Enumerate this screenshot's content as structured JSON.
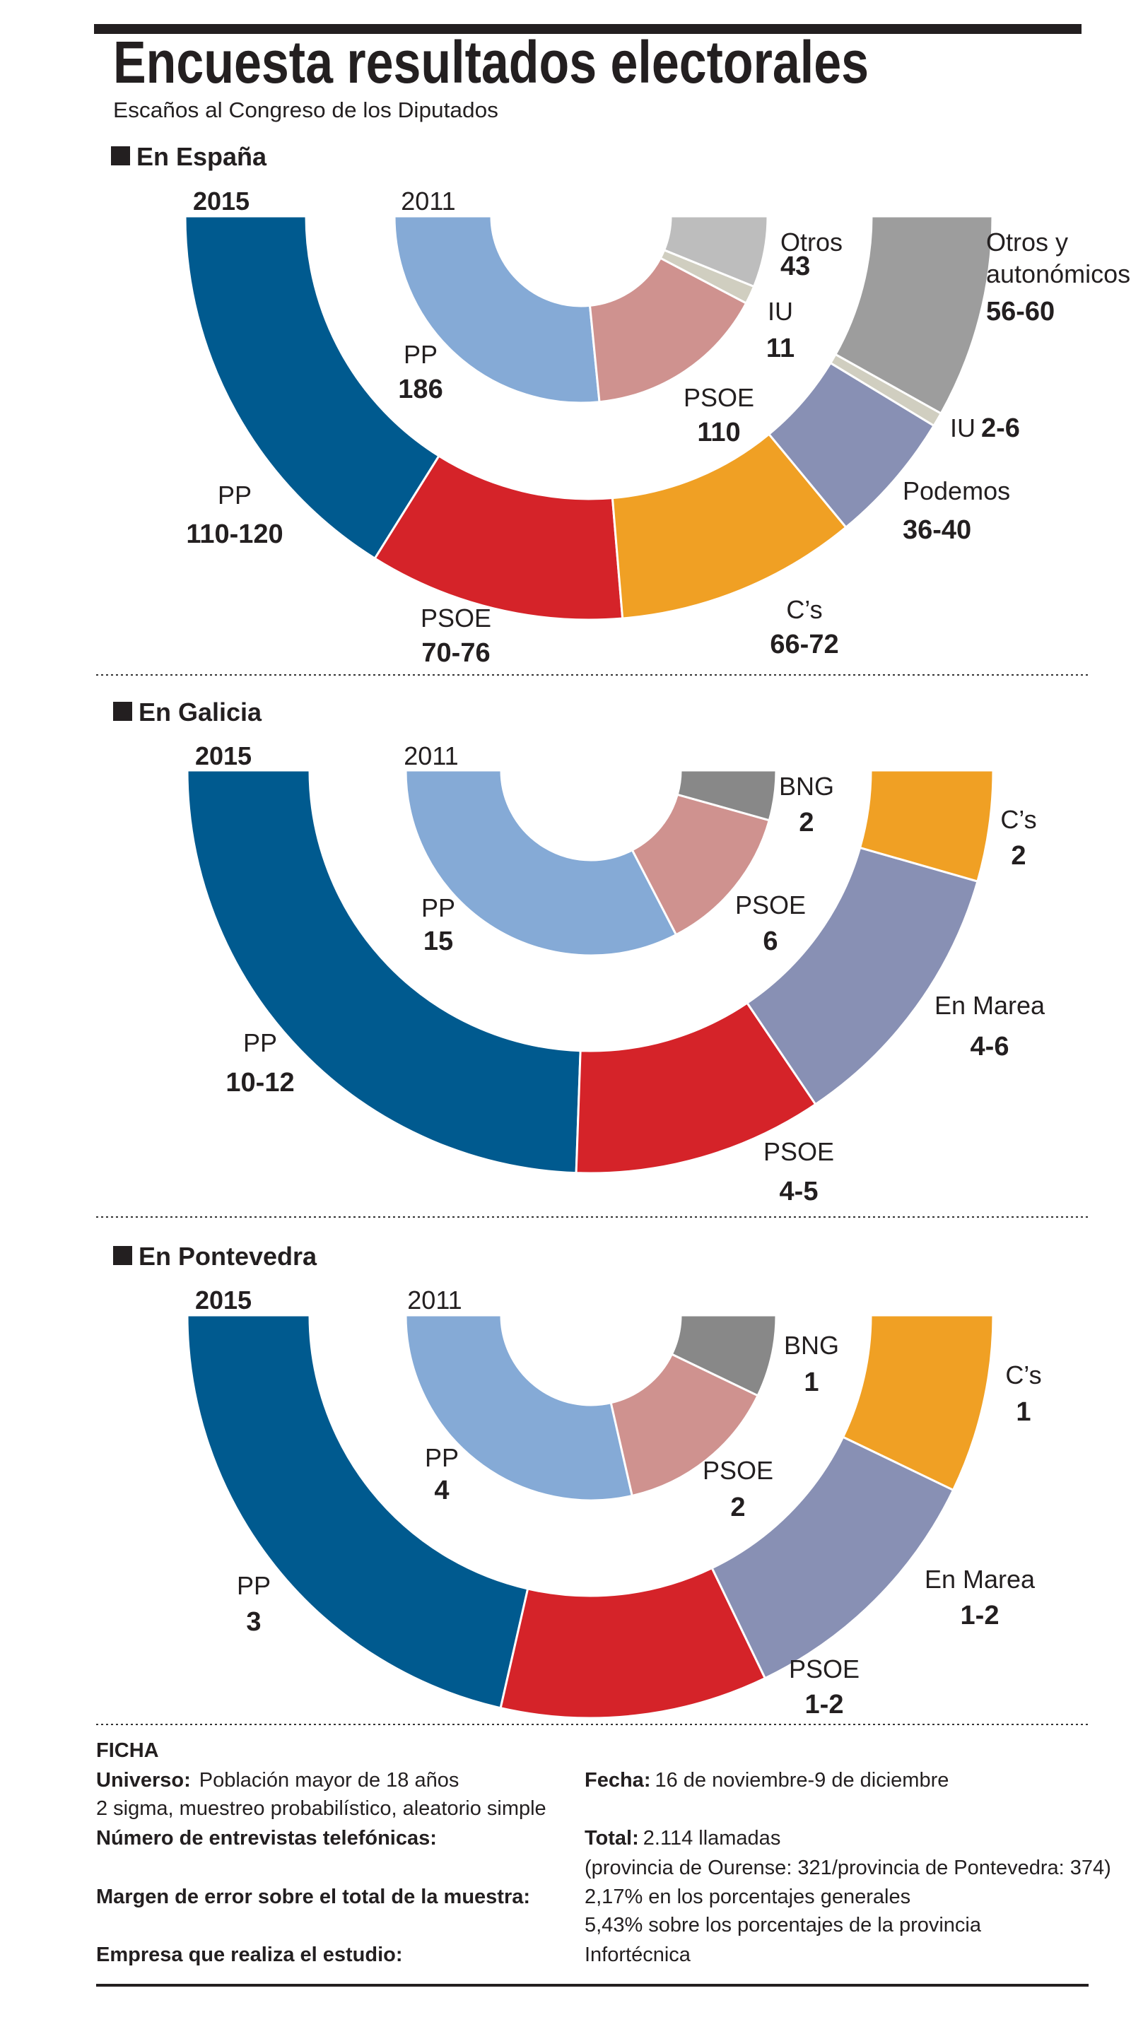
{
  "title": "Encuesta resultados electorales",
  "subtitle": "Escaños al Congreso de los Diputados",
  "chart_data": [
    {
      "type": "pie",
      "subtype": "nested semicircle donut",
      "title": "En España",
      "series": [
        {
          "name": "2015",
          "ring": "outer",
          "segments": [
            {
              "party": "PP",
              "value_label": "110-120",
              "low": 110,
              "high": 120,
              "color": "#005a8f"
            },
            {
              "party": "PSOE",
              "value_label": "70-76",
              "low": 70,
              "high": 76,
              "color": "#d52329"
            },
            {
              "party": "C’s",
              "value_label": "66-72",
              "low": 66,
              "high": 72,
              "color": "#f0a024"
            },
            {
              "party": "Podemos",
              "value_label": "36-40",
              "low": 36,
              "high": 40,
              "color": "#8890b4"
            },
            {
              "party": "IU",
              "value_label": "2-6",
              "low": 2,
              "high": 6,
              "color": "#d0cec0"
            },
            {
              "party": "Otros y autonómicos",
              "party_lines": [
                "Otros y",
                "autonómicos"
              ],
              "value_label": "56-60",
              "low": 56,
              "high": 60,
              "color": "#9d9d9d"
            }
          ]
        },
        {
          "name": "2011",
          "ring": "inner",
          "segments": [
            {
              "party": "PP",
              "value_label": "186",
              "low": 186,
              "high": 186,
              "color": "#85aad6"
            },
            {
              "party": "PSOE",
              "value_label": "110",
              "low": 110,
              "high": 110,
              "color": "#cf928f"
            },
            {
              "party": "IU",
              "value_label": "11",
              "low": 11,
              "high": 11,
              "color": "#d0cec0"
            },
            {
              "party": "Otros",
              "value_label": "43",
              "low": 43,
              "high": 43,
              "color": "#bdbdbd"
            }
          ]
        }
      ]
    },
    {
      "type": "pie",
      "subtype": "nested semicircle donut",
      "title": "En Galicia",
      "series": [
        {
          "name": "2015",
          "ring": "outer",
          "segments": [
            {
              "party": "PP",
              "value_label": "10-12",
              "low": 10,
              "high": 12,
              "color": "#005a8f"
            },
            {
              "party": "PSOE",
              "value_label": "4-5",
              "low": 4,
              "high": 5,
              "color": "#d52329"
            },
            {
              "party": "En Marea",
              "value_label": "4-6",
              "low": 4,
              "high": 6,
              "color": "#8890b4"
            },
            {
              "party": "C’s",
              "value_label": "2",
              "low": 2,
              "high": 2,
              "color": "#f0a024"
            }
          ]
        },
        {
          "name": "2011",
          "ring": "inner",
          "segments": [
            {
              "party": "PP",
              "value_label": "15",
              "low": 15,
              "high": 15,
              "color": "#85aad6"
            },
            {
              "party": "PSOE",
              "value_label": "6",
              "low": 6,
              "high": 6,
              "color": "#cf928f"
            },
            {
              "party": "BNG",
              "value_label": "2",
              "low": 2,
              "high": 2,
              "color": "#888888"
            }
          ]
        }
      ]
    },
    {
      "type": "pie",
      "subtype": "nested semicircle donut",
      "title": "En Pontevedra",
      "series": [
        {
          "name": "2015",
          "ring": "outer",
          "segments": [
            {
              "party": "PP",
              "value_label": "3",
              "low": 3,
              "high": 3,
              "color": "#005a8f"
            },
            {
              "party": "PSOE",
              "value_label": "1-2",
              "low": 1,
              "high": 2,
              "color": "#d52329"
            },
            {
              "party": "En Marea",
              "value_label": "1-2",
              "low": 1,
              "high": 2,
              "color": "#8890b4"
            },
            {
              "party": "C’s",
              "value_label": "1",
              "low": 1,
              "high": 1,
              "color": "#f0a024"
            }
          ]
        },
        {
          "name": "2011",
          "ring": "inner",
          "segments": [
            {
              "party": "PP",
              "value_label": "4",
              "low": 4,
              "high": 4,
              "color": "#85aad6"
            },
            {
              "party": "PSOE",
              "value_label": "2",
              "low": 2,
              "high": 2,
              "color": "#cf928f"
            },
            {
              "party": "BNG",
              "value_label": "1",
              "low": 1,
              "high": 1,
              "color": "#888888"
            }
          ]
        }
      ]
    }
  ],
  "ficha": {
    "heading": "FICHA",
    "universo_label": "Universo:",
    "universo_value": "Población mayor de 18 años",
    "universo_value2": "2 sigma, muestreo probabilístico, aleatorio simple",
    "fecha_label": "Fecha:",
    "fecha_value": "16 de noviembre-9 de diciembre",
    "entrevistas_label": "Número de entrevistas telefónicas:",
    "total_label": "Total:",
    "total_value": "2.114 llamadas",
    "total_detail": "(provincia de Ourense: 321/provincia de Pontevedra: 374)",
    "margen_label": "Margen de error sobre el total de la muestra:",
    "margen_value1": "2,17% en los porcentajes generales",
    "margen_value2": "5,43% sobre los porcentajes de la provincia",
    "empresa_label": "Empresa que realiza el estudio:",
    "empresa_value": "Infortécnica"
  }
}
